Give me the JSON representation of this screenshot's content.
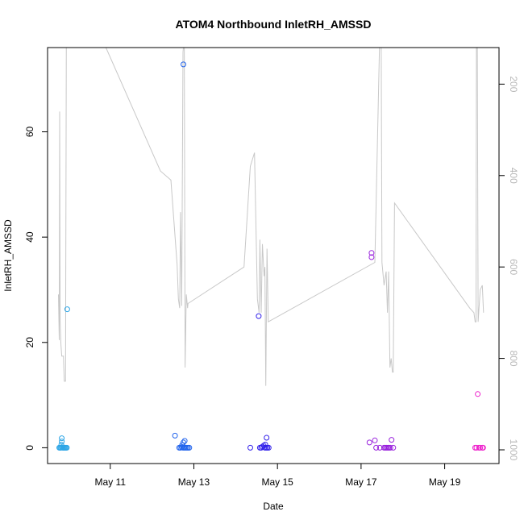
{
  "chart_data": {
    "type": "scatter",
    "title": "ATOM4 Northbound InletRH_AMSSD",
    "xlabel": "Date",
    "ylabel": "InletRH_AMSSD",
    "x_ticks": [
      "May 11",
      "May 13",
      "May 15",
      "May 17",
      "May 19"
    ],
    "x_tick_days": [
      11,
      13,
      15,
      17,
      19
    ],
    "xlim": [
      9.5,
      20.3
    ],
    "ylim": [
      -3,
      76
    ],
    "y_ticks": [
      0,
      20,
      40,
      60
    ],
    "y2_ticks": [
      200,
      400,
      600,
      800,
      1000
    ],
    "y2lim": [
      1030,
      120
    ],
    "y2_reversed": true,
    "grid": false,
    "legend": "none",
    "colors": {
      "points_start": "#2ea6e6",
      "points_end": "#ee22cc",
      "line": "#c8c8c8"
    },
    "points": [
      {
        "x": 9.78,
        "y": 0,
        "color": "#2ea6e6"
      },
      {
        "x": 9.8,
        "y": 0,
        "color": "#2ea6e6"
      },
      {
        "x": 9.82,
        "y": 0,
        "color": "#2ea6e6"
      },
      {
        "x": 9.84,
        "y": 0.1,
        "color": "#2ea6e6"
      },
      {
        "x": 9.86,
        "y": 0,
        "color": "#2ea6e6"
      },
      {
        "x": 9.88,
        "y": 0,
        "color": "#2ea6e6"
      },
      {
        "x": 9.9,
        "y": 0,
        "color": "#2ea6e6"
      },
      {
        "x": 9.92,
        "y": 0,
        "color": "#2ea6e6"
      },
      {
        "x": 9.94,
        "y": 0,
        "color": "#2ea6e6"
      },
      {
        "x": 9.96,
        "y": 0,
        "color": "#2ea6e6"
      },
      {
        "x": 9.83,
        "y": 0.6,
        "color": "#2ea6e6"
      },
      {
        "x": 9.84,
        "y": 1.2,
        "color": "#2ea6e6"
      },
      {
        "x": 9.84,
        "y": 1.8,
        "color": "#2ea6e6"
      },
      {
        "x": 9.97,
        "y": 26.3,
        "color": "#2ea6e6"
      },
      {
        "x": 12.55,
        "y": 2.3,
        "color": "#2264ec"
      },
      {
        "x": 12.65,
        "y": 0,
        "color": "#2264ec"
      },
      {
        "x": 12.68,
        "y": 0,
        "color": "#2264ec"
      },
      {
        "x": 12.71,
        "y": 0.1,
        "color": "#2264ec"
      },
      {
        "x": 12.74,
        "y": 0,
        "color": "#2264ec"
      },
      {
        "x": 12.77,
        "y": 0,
        "color": "#2264ec"
      },
      {
        "x": 12.8,
        "y": 0,
        "color": "#2264ec"
      },
      {
        "x": 12.83,
        "y": 0,
        "color": "#2264ec"
      },
      {
        "x": 12.86,
        "y": 0,
        "color": "#2264ec"
      },
      {
        "x": 12.89,
        "y": 0,
        "color": "#2264ec"
      },
      {
        "x": 12.72,
        "y": 0.5,
        "color": "#2264ec"
      },
      {
        "x": 12.75,
        "y": 1.0,
        "color": "#2264ec"
      },
      {
        "x": 12.78,
        "y": 1.3,
        "color": "#2264ec"
      },
      {
        "x": 12.75,
        "y": 72.8,
        "color": "#2264ec"
      },
      {
        "x": 14.35,
        "y": 0,
        "color": "#3322ea"
      },
      {
        "x": 14.55,
        "y": 25.0,
        "color": "#3322ea"
      },
      {
        "x": 14.58,
        "y": 0,
        "color": "#3322ea"
      },
      {
        "x": 14.61,
        "y": 0,
        "color": "#3322ea"
      },
      {
        "x": 14.64,
        "y": 0.2,
        "color": "#3322ea"
      },
      {
        "x": 14.67,
        "y": 0.4,
        "color": "#3322ea"
      },
      {
        "x": 14.7,
        "y": 0,
        "color": "#3322ea"
      },
      {
        "x": 14.73,
        "y": 0,
        "color": "#3322ea"
      },
      {
        "x": 14.76,
        "y": 0,
        "color": "#3322ea"
      },
      {
        "x": 14.79,
        "y": 0,
        "color": "#3322ea"
      },
      {
        "x": 14.71,
        "y": 0.6,
        "color": "#3322ea"
      },
      {
        "x": 14.74,
        "y": 1.9,
        "color": "#3322ea"
      },
      {
        "x": 17.2,
        "y": 1.0,
        "color": "#9922dd"
      },
      {
        "x": 17.25,
        "y": 37.0,
        "color": "#9922dd"
      },
      {
        "x": 17.25,
        "y": 36.2,
        "color": "#9922dd"
      },
      {
        "x": 17.33,
        "y": 1.4,
        "color": "#9922dd"
      },
      {
        "x": 17.36,
        "y": 0,
        "color": "#9922dd"
      },
      {
        "x": 17.45,
        "y": 0,
        "color": "#9922dd"
      },
      {
        "x": 17.55,
        "y": 0,
        "color": "#9922dd"
      },
      {
        "x": 17.58,
        "y": 0,
        "color": "#9922dd"
      },
      {
        "x": 17.61,
        "y": 0,
        "color": "#9922dd"
      },
      {
        "x": 17.64,
        "y": 0,
        "color": "#9922dd"
      },
      {
        "x": 17.67,
        "y": 0,
        "color": "#9922dd"
      },
      {
        "x": 17.7,
        "y": 0,
        "color": "#9922dd"
      },
      {
        "x": 17.73,
        "y": 1.5,
        "color": "#9922dd"
      },
      {
        "x": 17.77,
        "y": 0,
        "color": "#9922dd"
      },
      {
        "x": 19.73,
        "y": 0,
        "color": "#ee22cc"
      },
      {
        "x": 19.76,
        "y": 0,
        "color": "#ee22cc"
      },
      {
        "x": 19.79,
        "y": 10.2,
        "color": "#ee22cc"
      },
      {
        "x": 19.82,
        "y": 0,
        "color": "#ee22cc"
      },
      {
        "x": 19.85,
        "y": 0,
        "color": "#ee22cc"
      },
      {
        "x": 19.9,
        "y": 0,
        "color": "#ee22cc"
      },
      {
        "x": 19.92,
        "y": 0,
        "color": "#ee22cc"
      }
    ],
    "secondary_line": {
      "axis": "right",
      "color": "#c8c8c8",
      "points": [
        [
          9.76,
          660
        ],
        [
          9.78,
          760
        ],
        [
          9.79,
          260
        ],
        [
          9.8,
          720
        ],
        [
          9.82,
          770
        ],
        [
          9.84,
          795
        ],
        [
          9.88,
          795
        ],
        [
          9.9,
          850
        ],
        [
          9.93,
          850
        ],
        [
          9.95,
          80
        ],
        [
          10.8,
          100
        ],
        [
          12.2,
          390
        ],
        [
          12.45,
          410
        ],
        [
          12.6,
          595
        ],
        [
          12.63,
          670
        ],
        [
          12.66,
          690
        ],
        [
          12.68,
          480
        ],
        [
          12.71,
          685
        ],
        [
          12.74,
          130
        ],
        [
          12.77,
          100
        ],
        [
          12.79,
          820
        ],
        [
          12.82,
          660
        ],
        [
          12.85,
          690
        ],
        [
          12.86,
          680
        ],
        [
          14.2,
          600
        ],
        [
          14.35,
          380
        ],
        [
          14.45,
          350
        ],
        [
          14.52,
          670
        ],
        [
          14.56,
          700
        ],
        [
          14.58,
          540
        ],
        [
          14.61,
          700
        ],
        [
          14.64,
          550
        ],
        [
          14.68,
          620
        ],
        [
          14.7,
          600
        ],
        [
          14.72,
          860
        ],
        [
          14.75,
          560
        ],
        [
          14.78,
          720
        ],
        [
          17.33,
          590
        ],
        [
          17.45,
          80
        ],
        [
          17.48,
          90
        ],
        [
          17.5,
          590
        ],
        [
          17.55,
          640
        ],
        [
          17.6,
          610
        ],
        [
          17.63,
          700
        ],
        [
          17.66,
          610
        ],
        [
          17.69,
          820
        ],
        [
          17.72,
          800
        ],
        [
          17.75,
          830
        ],
        [
          17.77,
          830
        ],
        [
          17.8,
          460
        ],
        [
          19.6,
          690
        ],
        [
          19.7,
          700
        ],
        [
          19.73,
          720
        ],
        [
          19.75,
          720
        ],
        [
          19.76,
          100
        ],
        [
          19.78,
          60
        ],
        [
          19.8,
          720
        ],
        [
          19.85,
          650
        ],
        [
          19.9,
          640
        ],
        [
          19.93,
          700
        ]
      ]
    }
  }
}
